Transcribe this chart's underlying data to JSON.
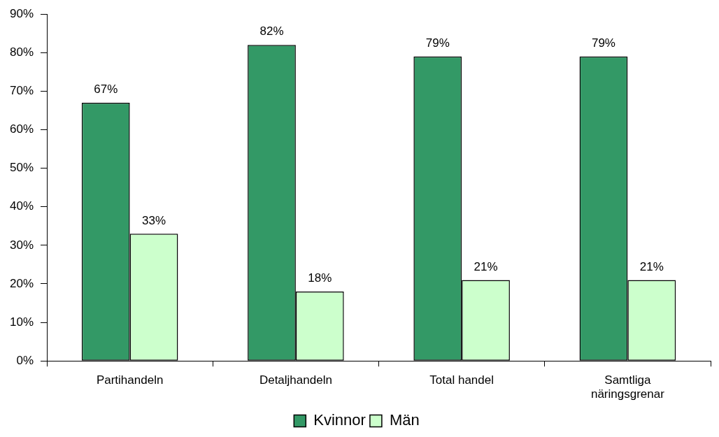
{
  "chart_data": {
    "type": "bar",
    "categories": [
      "Partihandeln",
      "Detaljhandeln",
      "Total handel",
      "Samtliga näringsgrenar"
    ],
    "series": [
      {
        "name": "Kvinnor",
        "color": "#339966",
        "values": [
          67,
          82,
          79,
          79
        ],
        "value_labels": [
          "67%",
          "82%",
          "79%",
          "79%"
        ]
      },
      {
        "name": "Män",
        "color": "#ccffcc",
        "values": [
          33,
          18,
          21,
          21
        ],
        "value_labels": [
          "33%",
          "18%",
          "21%",
          "21%"
        ]
      }
    ],
    "ylim": [
      0,
      90
    ],
    "yticks": [
      {
        "value": 0,
        "label": "0%"
      },
      {
        "value": 10,
        "label": "10%"
      },
      {
        "value": 20,
        "label": "20%"
      },
      {
        "value": 30,
        "label": "30%"
      },
      {
        "value": 40,
        "label": "40%"
      },
      {
        "value": 50,
        "label": "50%"
      },
      {
        "value": 60,
        "label": "60%"
      },
      {
        "value": 70,
        "label": "70%"
      },
      {
        "value": 80,
        "label": "80%"
      },
      {
        "value": 90,
        "label": "90%"
      }
    ],
    "legend": "bottom"
  }
}
